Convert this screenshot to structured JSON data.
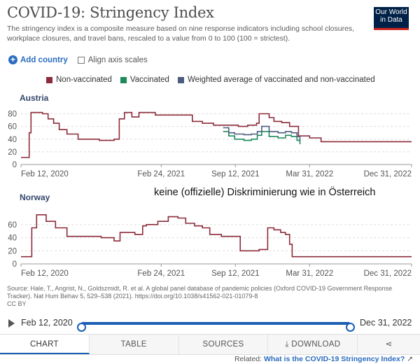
{
  "header": {
    "title": "COVID-19: Stringency Index",
    "subtitle": "The stringency index is a composite measure based on nine response indicators including school closures, workplace closures, and travel bans, rescaled to a value from 0 to 100 (100 = strictest).",
    "logo": "Our World in Data"
  },
  "controls": {
    "add_country": "Add country",
    "align_scales": "Align axis scales"
  },
  "annotation": "keine (offizielle) Diskriminierung wie in Österreich",
  "source_text": "Source: Hale, T., Angrist, N., Goldszmidt, R. et al. A global panel database of pandemic policies (Oxford COVID-19 Government Response Tracker). Nat Hum Behav 5, 529–538 (2021). https://doi.org/10.1038/s41562-021-01079-8",
  "license": "CC BY",
  "timeline": {
    "start": "Feb 12, 2020",
    "end": "Dec 31, 2022"
  },
  "tabs": [
    "CHART",
    "TABLE",
    "SOURCES",
    "DOWNLOAD",
    ""
  ],
  "related": {
    "prefix": "Related:",
    "link": "What is the COVID-19 Stringency Index?"
  },
  "colors": {
    "non_vaccinated": "#8c2b3a",
    "vaccinated": "#1c8a5c",
    "weighted": "#4c5c7d"
  },
  "chart_data": [
    {
      "type": "line",
      "facet": "Austria",
      "x_ticks": [
        "Feb 12, 2020",
        "Feb 24, 2021",
        "Sep 12, 2021",
        "Mar 31, 2022",
        "Dec 31, 2022"
      ],
      "y_ticks": [
        0,
        20,
        40,
        60,
        80
      ],
      "ylim": [
        0,
        85
      ],
      "series": [
        {
          "name": "Non-vaccinated",
          "points": [
            [
              "2020-02-12",
              11
            ],
            [
              "2020-03-01",
              11
            ],
            [
              "2020-03-05",
              50
            ],
            [
              "2020-03-10",
              82
            ],
            [
              "2020-04-10",
              80
            ],
            [
              "2020-04-25",
              72
            ],
            [
              "2020-05-10",
              65
            ],
            [
              "2020-05-25",
              55
            ],
            [
              "2020-06-15",
              48
            ],
            [
              "2020-07-15",
              40
            ],
            [
              "2020-09-10",
              38
            ],
            [
              "2020-10-20",
              40
            ],
            [
              "2020-11-03",
              72
            ],
            [
              "2020-11-17",
              82
            ],
            [
              "2020-12-07",
              75
            ],
            [
              "2020-12-26",
              82
            ],
            [
              "2021-02-08",
              78
            ],
            [
              "2021-03-20",
              78
            ],
            [
              "2021-05-19",
              68
            ],
            [
              "2021-06-15",
              65
            ],
            [
              "2021-07-15",
              62
            ],
            [
              "2021-08-25",
              62
            ],
            [
              "2021-09-20",
              60
            ],
            [
              "2021-10-15",
              62
            ],
            [
              "2021-11-08",
              65
            ],
            [
              "2021-11-15",
              80
            ],
            [
              "2021-12-12",
              74
            ],
            [
              "2021-12-25",
              68
            ],
            [
              "2022-01-15",
              66
            ],
            [
              "2022-02-05",
              60
            ],
            [
              "2022-03-01",
              45
            ],
            [
              "2022-03-31",
              42
            ],
            [
              "2022-05-01",
              36
            ],
            [
              "2022-12-31",
              36
            ]
          ]
        },
        {
          "name": "Vaccinated",
          "points": [
            [
              "2021-08-10",
              52
            ],
            [
              "2021-08-25",
              45
            ],
            [
              "2021-09-10",
              40
            ],
            [
              "2021-10-05",
              38
            ],
            [
              "2021-10-25",
              40
            ],
            [
              "2021-11-10",
              46
            ],
            [
              "2021-11-22",
              52
            ],
            [
              "2021-12-12",
              44
            ],
            [
              "2022-01-05",
              42
            ],
            [
              "2022-01-25",
              46
            ],
            [
              "2022-02-10",
              44
            ],
            [
              "2022-02-25",
              38
            ],
            [
              "2022-03-05",
              32
            ]
          ]
        },
        {
          "name": "Weighted average of vaccinated and non-vaccinated",
          "points": [
            [
              "2021-08-10",
              58
            ],
            [
              "2021-08-25",
              50
            ],
            [
              "2021-09-10",
              48
            ],
            [
              "2021-10-05",
              47
            ],
            [
              "2021-10-25",
              48
            ],
            [
              "2021-11-10",
              52
            ],
            [
              "2021-11-22",
              60
            ],
            [
              "2021-12-12",
              52
            ],
            [
              "2022-01-05",
              50
            ],
            [
              "2022-01-25",
              52
            ],
            [
              "2022-02-10",
              50
            ],
            [
              "2022-02-25",
              44
            ],
            [
              "2022-03-05",
              38
            ]
          ]
        }
      ]
    },
    {
      "type": "line",
      "facet": "Norway",
      "x_ticks": [
        "Feb 12, 2020",
        "Feb 24, 2021",
        "Sep 12, 2021",
        "Mar 31, 2022",
        "Dec 31, 2022"
      ],
      "y_ticks": [
        0,
        20,
        40,
        60
      ],
      "ylim": [
        0,
        78
      ],
      "series": [
        {
          "name": "Non-vaccinated",
          "points": [
            [
              "2020-02-12",
              11
            ],
            [
              "2020-03-05",
              11
            ],
            [
              "2020-03-12",
              55
            ],
            [
              "2020-03-25",
              75
            ],
            [
              "2020-04-20",
              65
            ],
            [
              "2020-05-15",
              55
            ],
            [
              "2020-06-15",
              42
            ],
            [
              "2020-08-20",
              42
            ],
            [
              "2020-09-15",
              40
            ],
            [
              "2020-10-20",
              35
            ],
            [
              "2020-11-05",
              48
            ],
            [
              "2020-12-15",
              45
            ],
            [
              "2021-01-05",
              58
            ],
            [
              "2021-01-15",
              60
            ],
            [
              "2021-02-15",
              65
            ],
            [
              "2021-03-15",
              72
            ],
            [
              "2021-04-10",
              70
            ],
            [
              "2021-05-01",
              62
            ],
            [
              "2021-05-25",
              58
            ],
            [
              "2021-06-15",
              55
            ],
            [
              "2021-07-05",
              45
            ],
            [
              "2021-08-05",
              42
            ],
            [
              "2021-09-25",
              20
            ],
            [
              "2021-11-15",
              22
            ],
            [
              "2021-12-08",
              55
            ],
            [
              "2021-12-25",
              52
            ],
            [
              "2022-01-12",
              48
            ],
            [
              "2022-01-25",
              45
            ],
            [
              "2022-02-05",
              30
            ],
            [
              "2022-02-12",
              11
            ],
            [
              "2022-12-31",
              11
            ]
          ]
        }
      ]
    }
  ]
}
